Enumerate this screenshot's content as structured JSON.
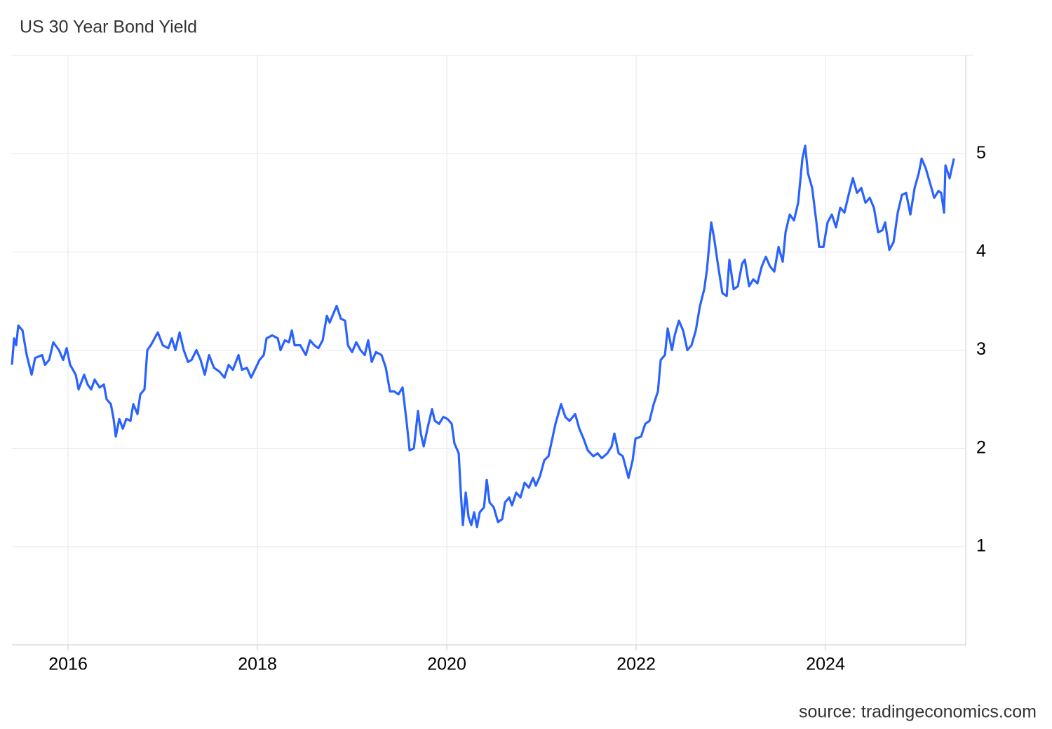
{
  "chart_data": {
    "type": "line",
    "title": "US 30 Year Bond Yield",
    "source": "source: tradingeconomics.com",
    "color": "#2962ff",
    "grid": true,
    "xlim": [
      2015.407,
      2025.481
    ],
    "xticks": [
      2016,
      2018,
      2020,
      2022,
      2024
    ],
    "ylim": [
      0,
      6
    ],
    "yticks": [
      1,
      2,
      3,
      4,
      5
    ],
    "x": [
      2015.407,
      2015.43,
      2015.452,
      2015.474,
      2015.519,
      2015.563,
      2015.615,
      2015.652,
      2015.726,
      2015.756,
      2015.8,
      2015.844,
      2015.904,
      2015.948,
      2015.985,
      2016.022,
      2016.081,
      2016.111,
      2016.17,
      2016.207,
      2016.244,
      2016.281,
      2016.333,
      2016.378,
      2016.407,
      2016.452,
      2016.481,
      2016.504,
      2016.541,
      2016.578,
      2016.615,
      2016.659,
      2016.689,
      2016.733,
      2016.763,
      2016.807,
      2016.837,
      2016.874,
      2016.948,
      2017.0,
      2017.059,
      2017.096,
      2017.133,
      2017.178,
      2017.222,
      2017.267,
      2017.304,
      2017.356,
      2017.4,
      2017.444,
      2017.489,
      2017.541,
      2017.6,
      2017.652,
      2017.696,
      2017.741,
      2017.8,
      2017.837,
      2017.889,
      2017.933,
      2017.963,
      2018.022,
      2018.067,
      2018.096,
      2018.156,
      2018.215,
      2018.244,
      2018.289,
      2018.333,
      2018.363,
      2018.393,
      2018.452,
      2018.511,
      2018.556,
      2018.6,
      2018.644,
      2018.689,
      2018.733,
      2018.763,
      2018.793,
      2018.837,
      2018.881,
      2018.926,
      2018.956,
      2019.0,
      2019.044,
      2019.089,
      2019.133,
      2019.17,
      2019.207,
      2019.252,
      2019.311,
      2019.356,
      2019.4,
      2019.444,
      2019.489,
      2019.533,
      2019.578,
      2019.607,
      2019.652,
      2019.696,
      2019.726,
      2019.756,
      2019.8,
      2019.844,
      2019.874,
      2019.919,
      2019.963,
      2020.007,
      2020.052,
      2020.081,
      2020.126,
      2020.148,
      2020.17,
      2020.2,
      2020.23,
      2020.259,
      2020.289,
      2020.319,
      2020.348,
      2020.393,
      2020.422,
      2020.452,
      2020.496,
      2020.541,
      2020.585,
      2020.615,
      2020.659,
      2020.689,
      2020.733,
      2020.778,
      2020.822,
      2020.867,
      2020.911,
      2020.941,
      2020.985,
      2021.03,
      2021.074,
      2021.119,
      2021.148,
      2021.207,
      2021.252,
      2021.296,
      2021.356,
      2021.4,
      2021.444,
      2021.489,
      2021.548,
      2021.593,
      2021.637,
      2021.696,
      2021.741,
      2021.77,
      2021.815,
      2021.859,
      2021.919,
      2021.963,
      2021.993,
      2022.052,
      2022.096,
      2022.141,
      2022.185,
      2022.23,
      2022.259,
      2022.304,
      2022.333,
      2022.378,
      2022.407,
      2022.452,
      2022.496,
      2022.541,
      2022.585,
      2022.63,
      2022.674,
      2022.719,
      2022.748,
      2022.793,
      2022.822,
      2022.867,
      2022.911,
      2022.956,
      2022.985,
      2023.03,
      2023.074,
      2023.119,
      2023.148,
      2023.193,
      2023.237,
      2023.281,
      2023.326,
      2023.37,
      2023.415,
      2023.459,
      2023.504,
      2023.548,
      2023.578,
      2023.622,
      2023.667,
      2023.711,
      2023.756,
      2023.785,
      2023.815,
      2023.859,
      2023.904,
      2023.933,
      2023.978,
      2024.022,
      2024.067,
      2024.111,
      2024.156,
      2024.2,
      2024.244,
      2024.289,
      2024.333,
      2024.378,
      2024.422,
      2024.467,
      2024.511,
      2024.556,
      2024.6,
      2024.63,
      2024.674,
      2024.719,
      2024.763,
      2024.807,
      2024.852,
      2024.896,
      2024.941,
      2024.985,
      2025.015,
      2025.059,
      2025.104,
      2025.148,
      2025.193,
      2025.222,
      2025.252,
      2025.267,
      2025.311,
      2025.356
    ],
    "values": [
      2.85,
      3.12,
      3.05,
      3.25,
      3.2,
      2.95,
      2.75,
      2.92,
      2.95,
      2.85,
      2.9,
      3.08,
      3.0,
      2.9,
      3.02,
      2.85,
      2.75,
      2.6,
      2.75,
      2.65,
      2.6,
      2.7,
      2.62,
      2.65,
      2.5,
      2.45,
      2.3,
      2.12,
      2.3,
      2.2,
      2.3,
      2.28,
      2.45,
      2.35,
      2.55,
      2.6,
      3.0,
      3.05,
      3.18,
      3.05,
      3.02,
      3.12,
      3.0,
      3.18,
      3.0,
      2.88,
      2.9,
      3.0,
      2.9,
      2.75,
      2.95,
      2.82,
      2.78,
      2.72,
      2.85,
      2.8,
      2.95,
      2.8,
      2.82,
      2.72,
      2.78,
      2.9,
      2.95,
      3.12,
      3.15,
      3.12,
      3.0,
      3.1,
      3.08,
      3.2,
      3.05,
      3.05,
      2.95,
      3.1,
      3.05,
      3.02,
      3.1,
      3.35,
      3.28,
      3.35,
      3.45,
      3.32,
      3.3,
      3.05,
      2.98,
      3.08,
      3.0,
      2.95,
      3.1,
      2.88,
      2.98,
      2.95,
      2.82,
      2.58,
      2.58,
      2.55,
      2.62,
      2.25,
      1.98,
      2.0,
      2.38,
      2.15,
      2.02,
      2.22,
      2.4,
      2.28,
      2.25,
      2.32,
      2.3,
      2.25,
      2.05,
      1.95,
      1.55,
      1.22,
      1.55,
      1.3,
      1.22,
      1.35,
      1.2,
      1.35,
      1.4,
      1.68,
      1.45,
      1.4,
      1.25,
      1.28,
      1.45,
      1.5,
      1.42,
      1.55,
      1.5,
      1.65,
      1.6,
      1.7,
      1.62,
      1.72,
      1.88,
      1.92,
      2.12,
      2.25,
      2.45,
      2.32,
      2.28,
      2.35,
      2.2,
      2.1,
      1.98,
      1.92,
      1.95,
      1.9,
      1.95,
      2.02,
      2.15,
      1.95,
      1.92,
      1.7,
      1.88,
      2.1,
      2.12,
      2.25,
      2.28,
      2.45,
      2.58,
      2.9,
      2.95,
      3.22,
      3.0,
      3.15,
      3.3,
      3.2,
      3.0,
      3.05,
      3.2,
      3.45,
      3.62,
      3.82,
      4.3,
      4.15,
      3.85,
      3.58,
      3.55,
      3.92,
      3.62,
      3.65,
      3.88,
      3.92,
      3.65,
      3.72,
      3.68,
      3.85,
      3.95,
      3.85,
      3.8,
      4.05,
      3.9,
      4.2,
      4.38,
      4.32,
      4.5,
      4.95,
      5.08,
      4.8,
      4.65,
      4.3,
      4.05,
      4.05,
      4.3,
      4.38,
      4.25,
      4.45,
      4.4,
      4.58,
      4.75,
      4.6,
      4.65,
      4.5,
      4.55,
      4.45,
      4.2,
      4.22,
      4.3,
      4.02,
      4.1,
      4.4,
      4.58,
      4.6,
      4.38,
      4.65,
      4.8,
      4.95,
      4.85,
      4.7,
      4.55,
      4.62,
      4.6,
      4.4,
      4.88,
      4.75,
      4.95
    ]
  }
}
